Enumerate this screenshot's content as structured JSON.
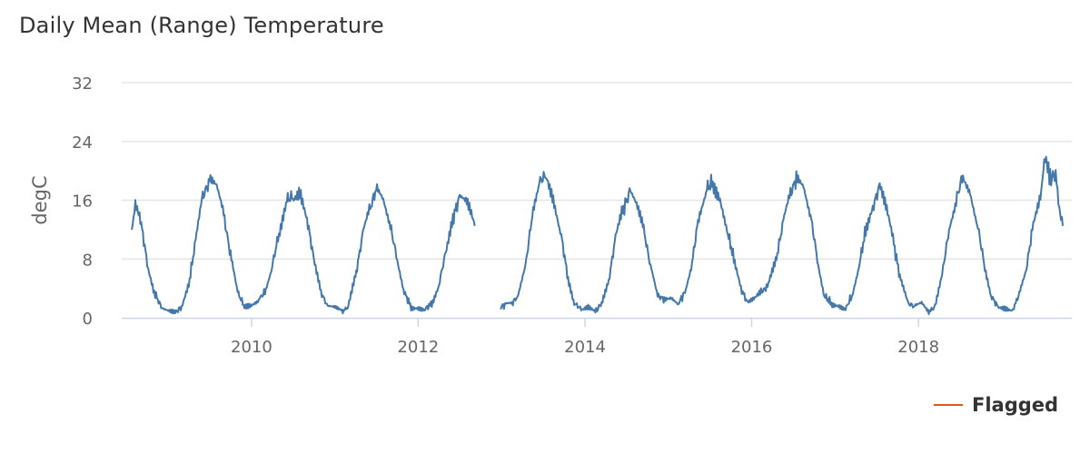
{
  "chart_data": {
    "type": "line",
    "title": "Daily Mean (Range) Temperature",
    "ylabel": "degC",
    "xlabel": "",
    "ylim": [
      0,
      32
    ],
    "yticks": [
      "0",
      "8",
      "16",
      "24",
      "32"
    ],
    "xlim": [
      "2008-07-25",
      "2019-09-25"
    ],
    "xticks": [
      "2010",
      "2012",
      "2014",
      "2016",
      "2018"
    ],
    "grid": true,
    "legend_position": "bottom-right",
    "colors": {
      "series": "#4477aa",
      "flagged": "#e0541d",
      "grid": "#e6e6e6",
      "axis": "#ccd6eb"
    },
    "series": [
      {
        "color": "#4477aa",
        "segments": [
          [
            [
              "2008-07-25",
              12
            ],
            [
              "2008-08-10",
              15.5
            ],
            [
              "2008-09-01",
              13.5
            ],
            [
              "2008-10-01",
              7.5
            ],
            [
              "2008-11-01",
              3.5
            ],
            [
              "2008-12-01",
              1.5
            ],
            [
              "2009-01-01",
              1
            ],
            [
              "2009-02-01",
              0.7
            ],
            [
              "2009-03-01",
              1.5
            ],
            [
              "2009-04-01",
              4.5
            ],
            [
              "2009-05-01",
              10.5
            ],
            [
              "2009-06-01",
              16.5
            ],
            [
              "2009-07-01",
              18.5
            ],
            [
              "2009-08-01",
              17.5
            ],
            [
              "2009-09-01",
              14
            ],
            [
              "2009-10-01",
              8.5
            ],
            [
              "2009-11-01",
              3.5
            ],
            [
              "2009-12-01",
              1.5
            ],
            [
              "2010-01-01",
              1.8
            ],
            [
              "2010-02-01",
              2.5
            ],
            [
              "2010-03-01",
              3.5
            ],
            [
              "2010-04-01",
              7
            ],
            [
              "2010-05-01",
              11.5
            ],
            [
              "2010-06-01",
              16
            ],
            [
              "2010-07-01",
              16.5
            ],
            [
              "2010-08-01",
              17.5
            ],
            [
              "2010-09-01",
              13.5
            ],
            [
              "2010-10-01",
              8
            ],
            [
              "2010-11-01",
              3.5
            ],
            [
              "2010-12-01",
              1.5
            ],
            [
              "2011-01-01",
              1.3
            ],
            [
              "2011-02-01",
              0.8
            ],
            [
              "2011-03-01",
              1.5
            ],
            [
              "2011-04-01",
              5.5
            ],
            [
              "2011-05-01",
              11
            ],
            [
              "2011-06-01",
              14.5
            ],
            [
              "2011-07-01",
              17.5
            ],
            [
              "2011-08-01",
              16
            ],
            [
              "2011-09-01",
              12.5
            ],
            [
              "2011-10-01",
              8
            ],
            [
              "2011-11-01",
              3.5
            ],
            [
              "2011-12-01",
              1.5
            ],
            [
              "2012-01-01",
              1.5
            ],
            [
              "2012-02-01",
              1.2
            ],
            [
              "2012-03-01",
              2
            ],
            [
              "2012-04-01",
              4.5
            ],
            [
              "2012-05-01",
              9
            ],
            [
              "2012-06-01",
              13.5
            ],
            [
              "2012-07-01",
              16.5
            ],
            [
              "2012-08-01",
              15.5
            ],
            [
              "2012-09-05",
              12.5
            ]
          ],
          [
            [
              "2012-12-25",
              1.3
            ],
            [
              "2013-01-15",
              1.8
            ],
            [
              "2013-02-15",
              2
            ],
            [
              "2013-03-15",
              3
            ],
            [
              "2013-04-15",
              7
            ],
            [
              "2013-05-15",
              14
            ],
            [
              "2013-06-15",
              18.5
            ],
            [
              "2013-07-15",
              19.5
            ],
            [
              "2013-08-15",
              16.5
            ],
            [
              "2013-09-15",
              12
            ],
            [
              "2013-10-15",
              6
            ],
            [
              "2013-11-15",
              2
            ],
            [
              "2013-12-15",
              1.2
            ],
            [
              "2014-01-15",
              1.5
            ],
            [
              "2014-02-15",
              0.8
            ],
            [
              "2014-03-15",
              2
            ],
            [
              "2014-04-15",
              5
            ],
            [
              "2014-05-15",
              11
            ],
            [
              "2014-06-15",
              14.5
            ],
            [
              "2014-07-15",
              17
            ],
            [
              "2014-08-15",
              15
            ],
            [
              "2014-09-15",
              12
            ],
            [
              "2014-10-15",
              7
            ],
            [
              "2014-11-15",
              3
            ],
            [
              "2014-12-15",
              2.5
            ],
            [
              "2015-01-15",
              2.8
            ],
            [
              "2015-02-15",
              2
            ],
            [
              "2015-03-15",
              3.5
            ],
            [
              "2015-04-15",
              7.5
            ],
            [
              "2015-05-15",
              14
            ],
            [
              "2015-06-15",
              17.5
            ],
            [
              "2015-07-15",
              18.5
            ],
            [
              "2015-08-15",
              16.5
            ],
            [
              "2015-09-15",
              12
            ],
            [
              "2015-10-15",
              8
            ],
            [
              "2015-11-15",
              4
            ],
            [
              "2015-12-15",
              2
            ],
            [
              "2016-01-15",
              2.5
            ],
            [
              "2016-02-15",
              3.5
            ],
            [
              "2016-03-15",
              4.5
            ],
            [
              "2016-04-15",
              7.5
            ],
            [
              "2016-05-15",
              12.5
            ],
            [
              "2016-06-15",
              16.5
            ],
            [
              "2016-07-15",
              19
            ],
            [
              "2016-08-15",
              18
            ],
            [
              "2016-09-15",
              14
            ],
            [
              "2016-10-15",
              8
            ],
            [
              "2016-11-15",
              3
            ],
            [
              "2016-12-15",
              2
            ],
            [
              "2017-01-15",
              1.8
            ],
            [
              "2017-02-15",
              1.2
            ],
            [
              "2017-03-15",
              3
            ],
            [
              "2017-04-15",
              7
            ],
            [
              "2017-05-15",
              12
            ],
            [
              "2017-06-15",
              15
            ],
            [
              "2017-07-15",
              18
            ],
            [
              "2017-08-15",
              14.5
            ],
            [
              "2017-09-15",
              10
            ],
            [
              "2017-10-15",
              5
            ],
            [
              "2017-11-15",
              2
            ],
            [
              "2017-12-15",
              1.5
            ],
            [
              "2018-01-15",
              2
            ],
            [
              "2018-02-15",
              0.8
            ],
            [
              "2018-03-15",
              1.5
            ],
            [
              "2018-04-15",
              6
            ],
            [
              "2018-05-15",
              12
            ],
            [
              "2018-06-15",
              16
            ],
            [
              "2018-07-15",
              19.5
            ],
            [
              "2018-08-15",
              17.5
            ],
            [
              "2018-09-15",
              13
            ],
            [
              "2018-10-15",
              7.5
            ],
            [
              "2018-11-15",
              3
            ],
            [
              "2018-12-15",
              1.5
            ],
            [
              "2019-01-15",
              1.2
            ],
            [
              "2019-02-15",
              0.8
            ],
            [
              "2019-03-15",
              3
            ],
            [
              "2019-04-15",
              6
            ],
            [
              "2019-05-15",
              12
            ],
            [
              "2019-06-15",
              15.5
            ],
            [
              "2019-07-10",
              22
            ],
            [
              "2019-08-01",
              19
            ],
            [
              "2019-08-25",
              19.5
            ],
            [
              "2019-09-10",
              15
            ],
            [
              "2019-09-25",
              12.5
            ]
          ]
        ]
      }
    ],
    "legend": [
      {
        "name": "Flagged",
        "color": "#e0541d"
      }
    ]
  }
}
